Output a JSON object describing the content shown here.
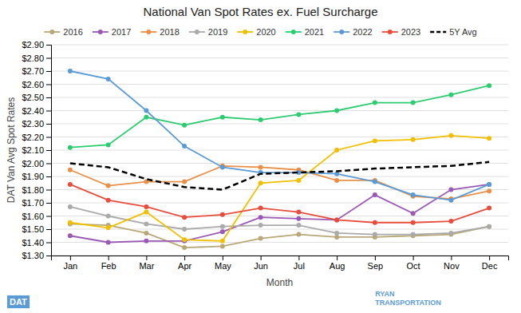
{
  "chart_data": {
    "type": "line",
    "title": "National Van Spot Rates ex. Fuel Surcharge",
    "xlabel": "Month",
    "ylabel": "DAT Van Avg Spot Rates",
    "categories": [
      "Jan",
      "Feb",
      "Mar",
      "Apr",
      "May",
      "Jun",
      "Jul",
      "Aug",
      "Sep",
      "Oct",
      "Nov",
      "Dec"
    ],
    "series": [
      {
        "name": "2016",
        "color": "#b8a878",
        "marker": "circle",
        "line_style": "solid",
        "values": [
          1.54,
          1.53,
          1.47,
          1.36,
          1.37,
          1.43,
          1.46,
          1.44,
          1.44,
          1.45,
          1.46,
          1.52
        ]
      },
      {
        "name": "2017",
        "color": "#9b59b6",
        "marker": "circle",
        "line_style": "solid",
        "values": [
          1.45,
          1.4,
          1.41,
          1.41,
          1.48,
          1.59,
          1.58,
          1.57,
          1.76,
          1.62,
          1.8,
          1.84
        ]
      },
      {
        "name": "2018",
        "color": "#e8904a",
        "marker": "circle",
        "line_style": "solid",
        "values": [
          1.95,
          1.83,
          1.86,
          1.86,
          1.98,
          1.97,
          1.95,
          1.87,
          1.87,
          1.75,
          1.73,
          1.79
        ]
      },
      {
        "name": "2019",
        "color": "#aaaaaa",
        "marker": "circle",
        "line_style": "solid",
        "values": [
          1.67,
          1.6,
          1.54,
          1.5,
          1.52,
          1.53,
          1.53,
          1.47,
          1.46,
          1.46,
          1.47,
          1.52
        ]
      },
      {
        "name": "2020",
        "color": "#f0c000",
        "marker": "circle",
        "line_style": "solid",
        "values": [
          1.55,
          1.51,
          1.63,
          1.42,
          1.41,
          1.85,
          1.87,
          2.1,
          2.17,
          2.18,
          2.21,
          2.19
        ]
      },
      {
        "name": "2021",
        "color": "#2ecc71",
        "marker": "circle",
        "line_style": "solid",
        "values": [
          2.12,
          2.14,
          2.35,
          2.29,
          2.35,
          2.33,
          2.37,
          2.4,
          2.46,
          2.46,
          2.52,
          2.59
        ]
      },
      {
        "name": "2022",
        "color": "#5b9bd5",
        "marker": "circle",
        "line_style": "solid",
        "values": [
          2.7,
          2.64,
          2.4,
          2.13,
          1.97,
          1.93,
          1.93,
          1.92,
          1.86,
          1.76,
          1.72,
          1.84
        ]
      },
      {
        "name": "2023",
        "color": "#e74c3c",
        "marker": "circle",
        "line_style": "solid",
        "values": [
          1.84,
          1.72,
          1.67,
          1.59,
          1.61,
          1.66,
          1.63,
          1.57,
          1.55,
          1.55,
          1.56,
          1.66
        ]
      },
      {
        "name": "5Y Avg",
        "color": "#000000",
        "marker": "none",
        "line_style": "dashed",
        "values": [
          2.0,
          1.97,
          1.88,
          1.82,
          1.8,
          1.92,
          1.93,
          1.94,
          1.96,
          1.97,
          1.98,
          2.01
        ]
      }
    ],
    "ylim": [
      1.3,
      2.9
    ],
    "yticks": [
      {
        "value": 1.3,
        "label": "$1.30"
      },
      {
        "value": 1.4,
        "label": "$1.40"
      },
      {
        "value": 1.5,
        "label": "$1.50"
      },
      {
        "value": 1.6,
        "label": "$1.60"
      },
      {
        "value": 1.7,
        "label": "$1.70"
      },
      {
        "value": 1.8,
        "label": "$1.80"
      },
      {
        "value": 1.9,
        "label": "$1.90"
      },
      {
        "value": 2.0,
        "label": "$2.00"
      },
      {
        "value": 2.1,
        "label": "$2.10"
      },
      {
        "value": 2.2,
        "label": "$2.20"
      },
      {
        "value": 2.3,
        "label": "$2.30"
      },
      {
        "value": 2.4,
        "label": "$2.40"
      },
      {
        "value": 2.5,
        "label": "$2.50"
      },
      {
        "value": 2.6,
        "label": "$2.60"
      },
      {
        "value": 2.7,
        "label": "$2.70"
      },
      {
        "value": 2.8,
        "label": "$2.80"
      },
      {
        "value": 2.9,
        "label": "$2.90"
      }
    ],
    "grid": true,
    "legend": "top",
    "annotations": [
      "DAT",
      "RYAN\nTRANSPORTATION"
    ]
  }
}
